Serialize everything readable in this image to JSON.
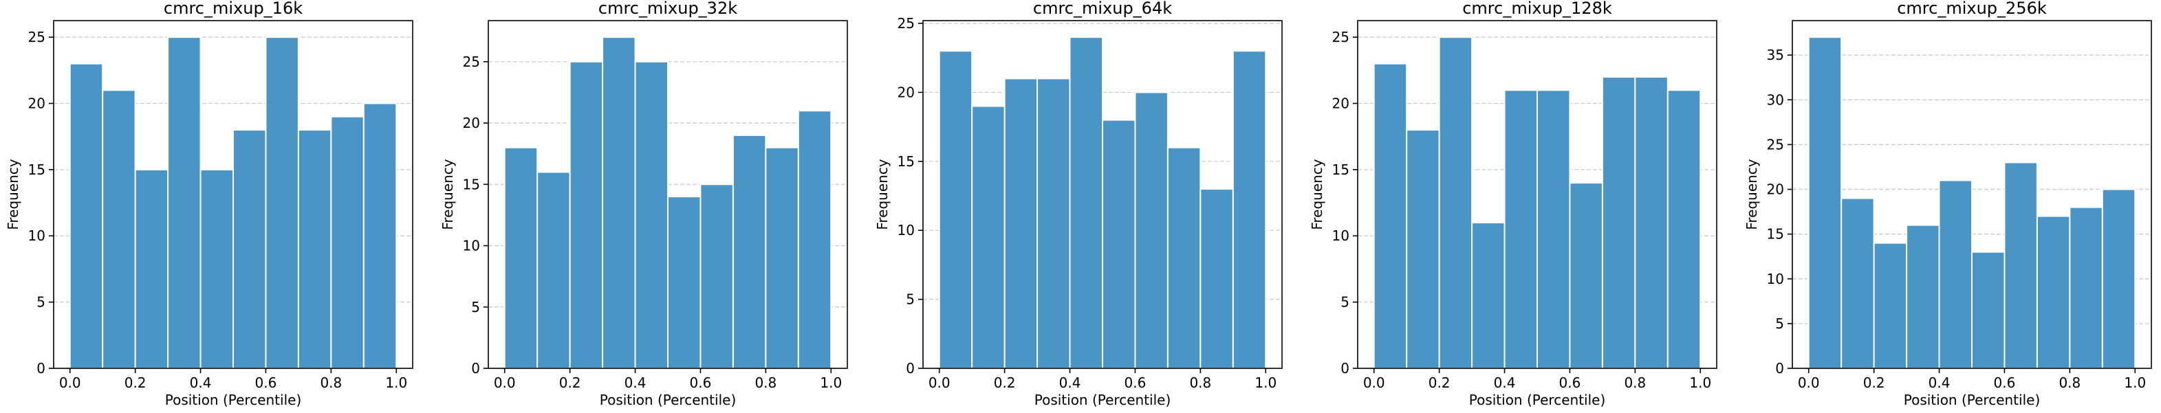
{
  "figure": {
    "bar_color": "#4b94c6",
    "bar_edge_color": "#ffffff",
    "grid_color": "#c8c8c8",
    "axis_color": "#000000"
  },
  "chart_data": [
    {
      "type": "bar",
      "title": "cmrc_mixup_16k",
      "xlabel": "Position (Percentile)",
      "ylabel": "Frequency",
      "bin_edges": [
        0.0,
        0.1,
        0.2,
        0.3,
        0.4,
        0.5,
        0.6,
        0.7,
        0.8,
        0.9,
        1.0
      ],
      "values": [
        23,
        21,
        15,
        25,
        15,
        18,
        25,
        18,
        19,
        20
      ],
      "xlim": [
        -0.05,
        1.05
      ],
      "ylim": [
        0,
        26.25
      ],
      "xticks": [
        "0.0",
        "0.2",
        "0.4",
        "0.6",
        "0.8",
        "1.0"
      ],
      "yticks": [
        "0",
        "5",
        "10",
        "15",
        "20",
        "25"
      ],
      "grid": "y dashed"
    },
    {
      "type": "bar",
      "title": "cmrc_mixup_32k",
      "xlabel": "Position (Percentile)",
      "ylabel": "Frequency",
      "bin_edges": [
        0.0,
        0.1,
        0.2,
        0.3,
        0.4,
        0.5,
        0.6,
        0.7,
        0.8,
        0.9,
        1.0
      ],
      "values": [
        18,
        16,
        25,
        27,
        25,
        14,
        15,
        19,
        18,
        21
      ],
      "xlim": [
        -0.05,
        1.05
      ],
      "ylim": [
        0,
        28.35
      ],
      "xticks": [
        "0.0",
        "0.2",
        "0.4",
        "0.6",
        "0.8",
        "1.0"
      ],
      "yticks": [
        "0",
        "5",
        "10",
        "15",
        "20",
        "25"
      ],
      "grid": "y dashed"
    },
    {
      "type": "bar",
      "title": "cmrc_mixup_64k",
      "xlabel": "Position (Percentile)",
      "ylabel": "Frequency",
      "bin_edges": [
        0.0,
        0.1,
        0.2,
        0.3,
        0.4,
        0.5,
        0.6,
        0.7,
        0.8,
        0.9,
        1.0
      ],
      "values": [
        23,
        19,
        21,
        21,
        24,
        18,
        20,
        16,
        13,
        23
      ],
      "xlim": [
        -0.05,
        1.05
      ],
      "ylim": [
        0,
        25.2
      ],
      "xticks": [
        "0.0",
        "0.2",
        "0.4",
        "0.6",
        "0.8",
        "1.0"
      ],
      "yticks": [
        "0",
        "5",
        "10",
        "15",
        "20",
        "25"
      ],
      "grid": "y dashed"
    },
    {
      "type": "bar",
      "title": "cmrc_mixup_128k",
      "xlabel": "Position (Percentile)",
      "ylabel": "Frequency",
      "bin_edges": [
        0.0,
        0.1,
        0.2,
        0.3,
        0.4,
        0.5,
        0.6,
        0.7,
        0.8,
        0.9,
        1.0
      ],
      "values": [
        23,
        18,
        25,
        11,
        21,
        21,
        14,
        22,
        22,
        21
      ],
      "xlim": [
        -0.05,
        1.05
      ],
      "ylim": [
        0,
        26.25
      ],
      "xticks": [
        "0.0",
        "0.2",
        "0.4",
        "0.6",
        "0.8",
        "1.0"
      ],
      "yticks": [
        "0",
        "5",
        "10",
        "15",
        "20",
        "25"
      ],
      "grid": "y dashed"
    },
    {
      "type": "bar",
      "title": "cmrc_mixup_256k",
      "xlabel": "Position (Percentile)",
      "ylabel": "Frequency",
      "bin_edges": [
        0.0,
        0.1,
        0.2,
        0.3,
        0.4,
        0.5,
        0.6,
        0.7,
        0.8,
        0.9,
        1.0
      ],
      "values": [
        37,
        19,
        14,
        16,
        21,
        13,
        23,
        17,
        18,
        20
      ],
      "xlim": [
        -0.05,
        1.05
      ],
      "ylim": [
        0,
        38.85
      ],
      "xticks": [
        "0.0",
        "0.2",
        "0.4",
        "0.6",
        "0.8",
        "1.0"
      ],
      "yticks": [
        "0",
        "5",
        "10",
        "15",
        "20",
        "25",
        "30",
        "35"
      ],
      "grid": "y dashed"
    }
  ]
}
